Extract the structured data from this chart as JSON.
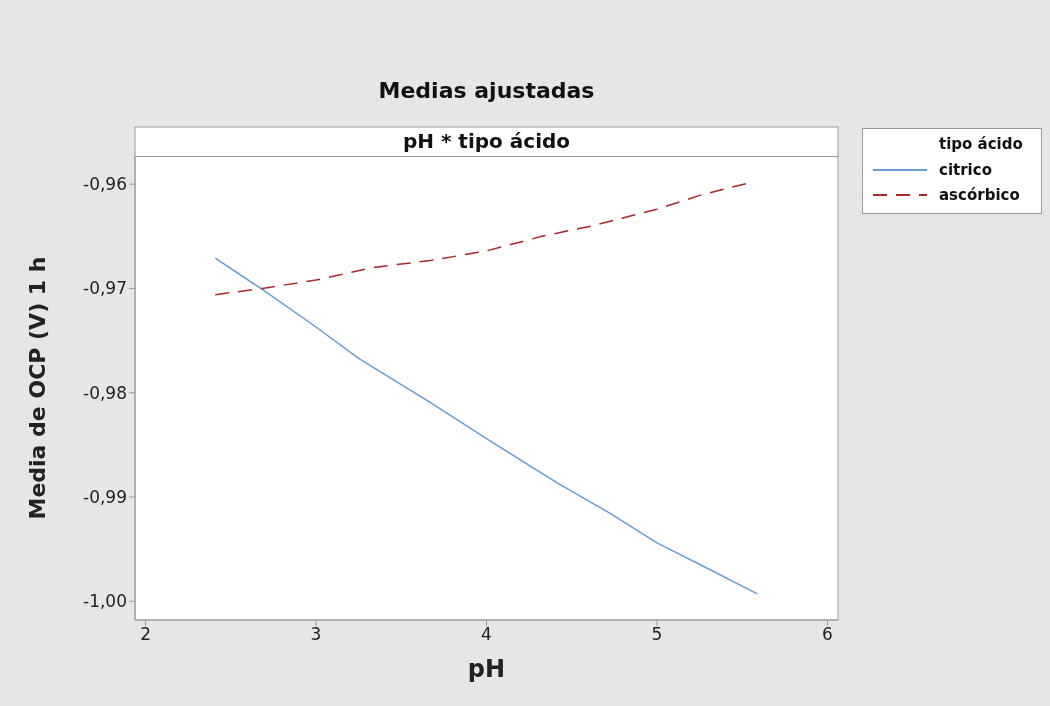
{
  "chart_data": {
    "type": "line",
    "title": "Medias ajustadas",
    "subtitle": "pH * tipo ácido",
    "xlabel": "pH",
    "ylabel": "Media de OCP (V) 1 h",
    "legend_title": "tipo ácido",
    "legend": "top right",
    "grid": false,
    "xlim": [
      1.938,
      6.062
    ],
    "xticks": [
      2,
      3,
      4,
      5,
      6
    ],
    "ylim": [
      -1.0018,
      -0.9573
    ],
    "yticks": [
      {
        "value": -0.96,
        "label": "-0,96"
      },
      {
        "value": -0.97,
        "label": "-0,97"
      },
      {
        "value": -0.98,
        "label": "-0,98"
      },
      {
        "value": -0.99,
        "label": "-0,99"
      },
      {
        "value": -1.0,
        "label": "-1,00"
      }
    ],
    "series": [
      {
        "name": "citrico",
        "color": "#6a9bd1",
        "line_style": "solid",
        "x": [
          2.409,
          2.685,
          3.0,
          3.25,
          3.667,
          4.0,
          4.419,
          4.728,
          5.0,
          5.266,
          5.589
        ],
        "values": [
          -0.9671,
          -0.9701,
          -0.9737,
          -0.9767,
          -0.9809,
          -0.9844,
          -0.9887,
          -0.9916,
          -0.9944,
          -0.9966,
          -0.9993
        ]
      },
      {
        "name": "ascórbico",
        "color": "#a8282c",
        "line_style": "dashed",
        "x": [
          2.409,
          2.685,
          3.0,
          3.331,
          3.68,
          4.0,
          4.325,
          4.62,
          5.0,
          5.266,
          5.535
        ],
        "values": [
          -0.9706,
          -0.97,
          -0.9692,
          -0.968,
          -0.9673,
          -0.9664,
          -0.965,
          -0.964,
          -0.9624,
          -0.961,
          -0.9599
        ]
      }
    ]
  }
}
